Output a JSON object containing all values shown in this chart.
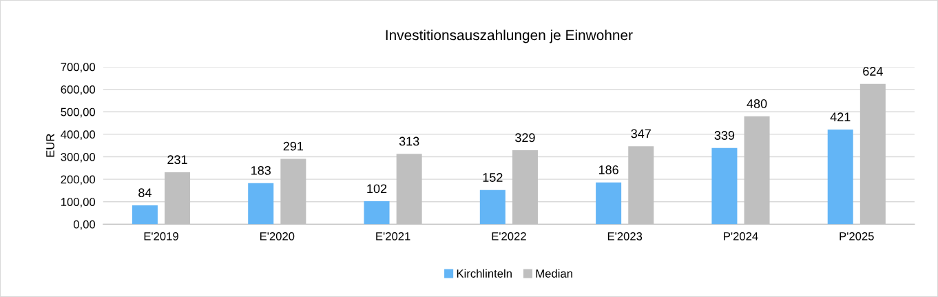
{
  "chart_data": {
    "type": "bar",
    "title": "Investitionsauszahlungen je Einwohner",
    "ylabel": "EUR",
    "categories": [
      "E'2019",
      "E'2020",
      "E'2021",
      "E'2022",
      "E'2023",
      "P'2024",
      "P'2025"
    ],
    "series": [
      {
        "name": "Kirchlinteln",
        "color": "#63b5f6",
        "values": [
          84,
          183,
          102,
          152,
          186,
          339,
          421
        ]
      },
      {
        "name": "Median",
        "color": "#bfbfbf",
        "values": [
          231,
          291,
          313,
          329,
          347,
          480,
          624
        ]
      }
    ],
    "ylim": [
      0,
      700
    ],
    "yticks": [
      {
        "value": 0,
        "label": "0,00"
      },
      {
        "value": 100,
        "label": "100,00"
      },
      {
        "value": 200,
        "label": "200,00"
      },
      {
        "value": 300,
        "label": "300,00"
      },
      {
        "value": 400,
        "label": "400,00"
      },
      {
        "value": 500,
        "label": "500,00"
      },
      {
        "value": 600,
        "label": "600,00"
      },
      {
        "value": 700,
        "label": "700,00"
      }
    ],
    "grid": "y",
    "legend": "bottom",
    "data_labels": true
  }
}
